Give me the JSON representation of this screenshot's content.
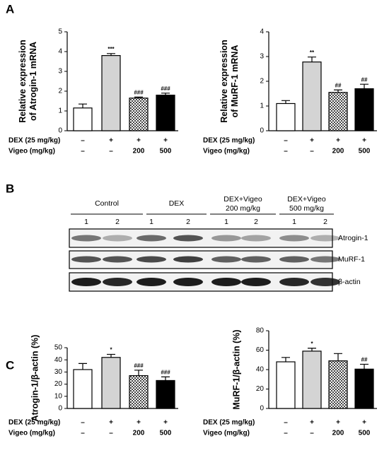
{
  "panels": [
    "A",
    "B",
    "C"
  ],
  "chart_data": [
    {
      "type": "bar",
      "ylabel": [
        "Relative expression",
        "of Atrogin-1 mRNA"
      ],
      "categories": [
        null,
        null,
        null,
        null
      ],
      "values": [
        1.15,
        3.8,
        1.65,
        1.8
      ],
      "errors": [
        0.2,
        0.1,
        0.05,
        0.1
      ],
      "annotations": [
        null,
        "***",
        "###",
        "###"
      ],
      "fills": [
        "#ffffff",
        "#d4d4d4",
        "checker",
        "#000000"
      ],
      "ylim": [
        0,
        5
      ],
      "yticks": [
        0,
        1,
        2,
        3,
        4,
        5
      ],
      "treatments": [
        {
          "label": "DEX (25 mg/kg)",
          "marks": [
            "–",
            "+",
            "+",
            "+"
          ]
        },
        {
          "label": "Vigeo (mg/kg)",
          "marks": [
            "–",
            "–",
            "200",
            "500"
          ]
        }
      ]
    },
    {
      "type": "bar",
      "ylabel": [
        "Relative expression",
        "of MuRF-1 mRNA"
      ],
      "categories": [
        null,
        null,
        null,
        null
      ],
      "values": [
        1.1,
        2.78,
        1.55,
        1.7
      ],
      "errors": [
        0.12,
        0.2,
        0.1,
        0.18
      ],
      "annotations": [
        null,
        "**",
        "##",
        "##"
      ],
      "fills": [
        "#ffffff",
        "#d4d4d4",
        "checker",
        "#000000"
      ],
      "ylim": [
        0,
        4
      ],
      "yticks": [
        0,
        1,
        2,
        3,
        4
      ],
      "treatments": [
        {
          "label": "DEX (25 mg/kg)",
          "marks": [
            "–",
            "+",
            "+",
            "+"
          ]
        },
        {
          "label": "Vigeo (mg/kg)",
          "marks": [
            "–",
            "–",
            "200",
            "500"
          ]
        }
      ]
    },
    {
      "type": "bar",
      "ylabel": [
        "Atrogin-1/β-actin (%)"
      ],
      "categories": [
        null,
        null,
        null,
        null
      ],
      "values": [
        32,
        42,
        27,
        23
      ],
      "errors": [
        5,
        2.5,
        4.5,
        3
      ],
      "annotations": [
        null,
        "*",
        "###",
        "###"
      ],
      "fills": [
        "#ffffff",
        "#d4d4d4",
        "checker",
        "#000000"
      ],
      "ylim": [
        0,
        50
      ],
      "yticks": [
        0,
        10,
        20,
        30,
        40,
        50
      ],
      "treatments": [
        {
          "label": "DEX (25 mg/kg)",
          "marks": [
            "–",
            "+",
            "+",
            "+"
          ]
        },
        {
          "label": "Vigeo (mg/kg)",
          "marks": [
            "–",
            "–",
            "200",
            "500"
          ]
        }
      ]
    },
    {
      "type": "bar",
      "ylabel": [
        "MuRF-1/β-actin (%)"
      ],
      "categories": [
        null,
        null,
        null,
        null
      ],
      "values": [
        48,
        59,
        49,
        40.5
      ],
      "errors": [
        4.5,
        3,
        7.5,
        5
      ],
      "annotations": [
        null,
        "*",
        null,
        "##"
      ],
      "fills": [
        "#ffffff",
        "#d4d4d4",
        "checker",
        "#000000"
      ],
      "ylim": [
        0,
        80
      ],
      "yticks": [
        0,
        20,
        40,
        60,
        80
      ],
      "treatments": [
        {
          "label": "DEX (25 mg/kg)",
          "marks": [
            "–",
            "+",
            "+",
            "+"
          ]
        },
        {
          "label": "Vigeo (mg/kg)",
          "marks": [
            "–",
            "–",
            "200",
            "500"
          ]
        }
      ]
    }
  ],
  "blot": {
    "groups": [
      [
        "Control"
      ],
      [
        "DEX"
      ],
      [
        "DEX+Vigeo",
        "200 mg/kg"
      ],
      [
        "DEX+Vigeo",
        "500 mg/kg"
      ]
    ],
    "lanes": [
      "1",
      "2",
      "1",
      "2",
      "1",
      "2",
      "1",
      "2"
    ],
    "bands": [
      "Atrogin-1",
      "MuRF-1",
      "β-actin"
    ]
  }
}
